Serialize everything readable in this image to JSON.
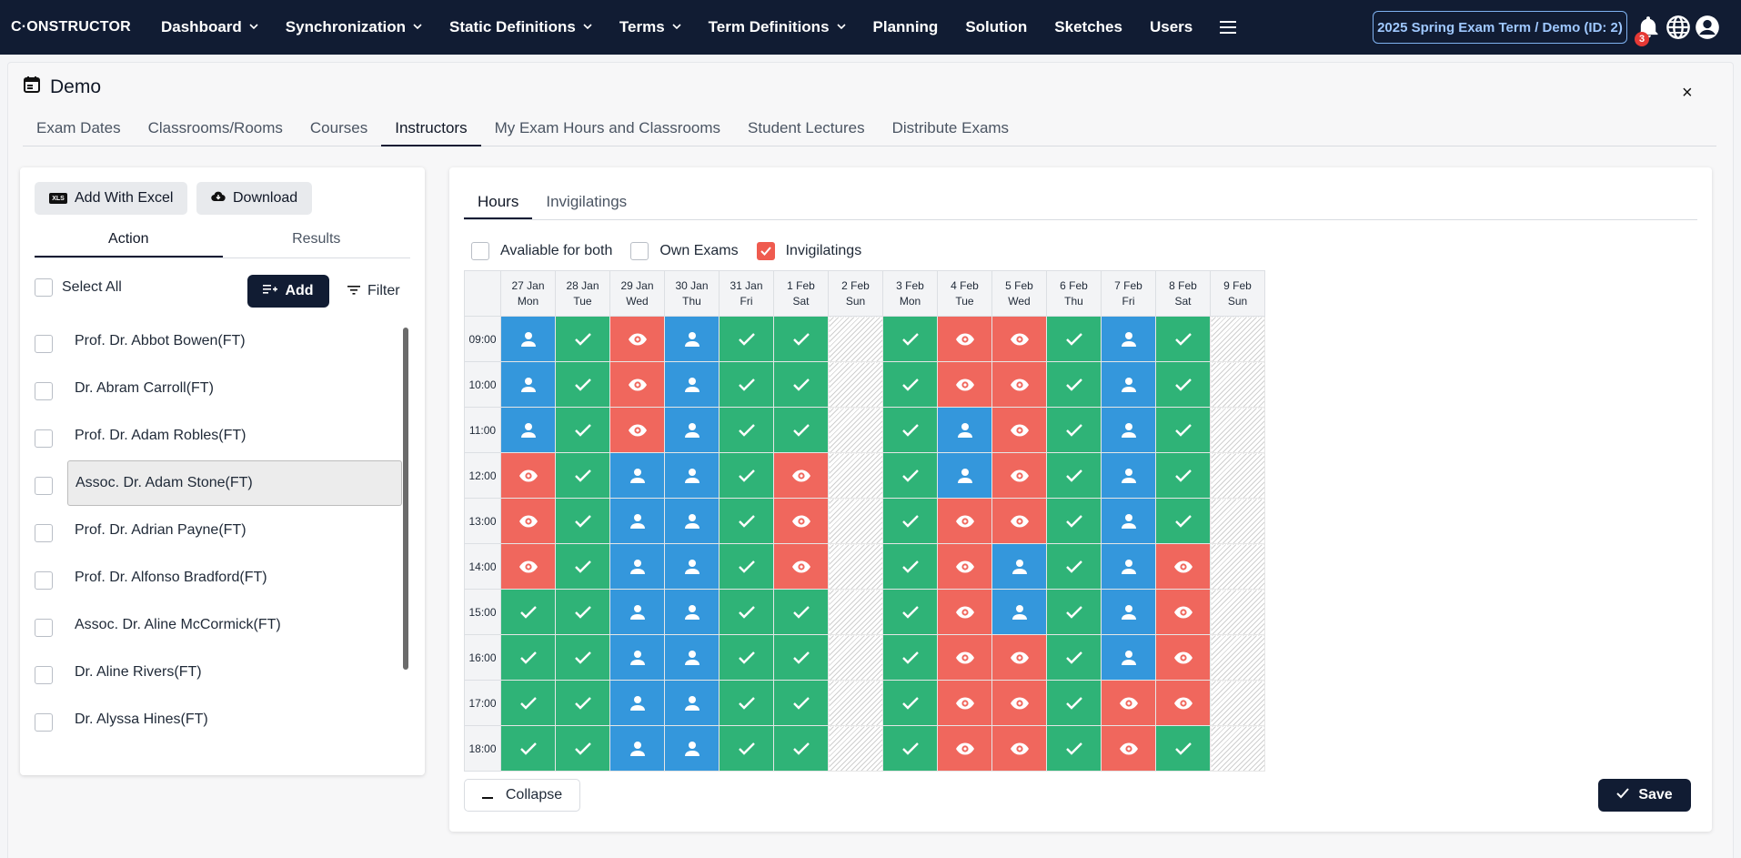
{
  "nav": {
    "logo": "C·ONSTRUCTOR",
    "items": [
      {
        "label": "Dashboard",
        "dropdown": true
      },
      {
        "label": "Synchronization",
        "dropdown": true
      },
      {
        "label": "Static Definitions",
        "dropdown": true
      },
      {
        "label": "Terms",
        "dropdown": true
      },
      {
        "label": "Term Definitions",
        "dropdown": true
      },
      {
        "label": "Planning",
        "dropdown": false
      },
      {
        "label": "Solution",
        "dropdown": false
      },
      {
        "label": "Sketches",
        "dropdown": false
      },
      {
        "label": "Users",
        "dropdown": false
      }
    ],
    "term_label": "2025 Spring Exam Term / Demo (ID: 2)",
    "notification_count": "3"
  },
  "page": {
    "title": "Demo",
    "close": "×",
    "tabs": [
      {
        "label": "Exam Dates",
        "active": false
      },
      {
        "label": "Classrooms/Rooms",
        "active": false
      },
      {
        "label": "Courses",
        "active": false
      },
      {
        "label": "Instructors",
        "active": true
      },
      {
        "label": "My Exam Hours and Classrooms",
        "active": false
      },
      {
        "label": "Student Lectures",
        "active": false
      },
      {
        "label": "Distribute Exams",
        "active": false
      }
    ]
  },
  "left": {
    "add_excel_label": "Add With Excel",
    "excel_badge": "XLS",
    "download_label": "Download",
    "subtabs": [
      {
        "label": "Action",
        "active": true
      },
      {
        "label": "Results",
        "active": false
      }
    ],
    "select_all_label": "Select All",
    "add_label": "Add",
    "filter_label": "Filter",
    "instructors": [
      {
        "name": "Prof. Dr. Abbot Bowen",
        "tag": "(FT)",
        "selected": false
      },
      {
        "name": "Dr. Abram Carroll",
        "tag": "(FT)",
        "selected": false
      },
      {
        "name": "Prof. Dr. Adam Robles",
        "tag": "(FT)",
        "selected": false
      },
      {
        "name": "Assoc. Dr. Adam Stone",
        "tag": "(FT)",
        "selected": true
      },
      {
        "name": "Prof. Dr. Adrian Payne",
        "tag": "(FT)",
        "selected": false
      },
      {
        "name": "Prof. Dr. Alfonso Bradford",
        "tag": "(FT)",
        "selected": false
      },
      {
        "name": "Assoc. Dr. Aline McCormick",
        "tag": "(FT)",
        "selected": false
      },
      {
        "name": "Dr. Aline Rivers",
        "tag": "(FT)",
        "selected": false
      },
      {
        "name": "Dr. Alyssa Hines",
        "tag": "(FT)",
        "selected": false
      }
    ]
  },
  "right": {
    "tabs": [
      {
        "label": "Hours",
        "active": true
      },
      {
        "label": "Invigilatings",
        "active": false
      }
    ],
    "legend": [
      {
        "label": "Avaliable for both",
        "checked": false
      },
      {
        "label": "Own Exams",
        "checked": false
      },
      {
        "label": "Invigilatings",
        "checked": true
      }
    ],
    "days": [
      {
        "date": "27 Jan",
        "dow": "Mon"
      },
      {
        "date": "28 Jan",
        "dow": "Tue"
      },
      {
        "date": "29 Jan",
        "dow": "Wed"
      },
      {
        "date": "30 Jan",
        "dow": "Thu"
      },
      {
        "date": "31 Jan",
        "dow": "Fri"
      },
      {
        "date": "1 Feb",
        "dow": "Sat"
      },
      {
        "date": "2 Feb",
        "dow": "Sun"
      },
      {
        "date": "3 Feb",
        "dow": "Mon"
      },
      {
        "date": "4 Feb",
        "dow": "Tue"
      },
      {
        "date": "5 Feb",
        "dow": "Wed"
      },
      {
        "date": "6 Feb",
        "dow": "Thu"
      },
      {
        "date": "7 Feb",
        "dow": "Fri"
      },
      {
        "date": "8 Feb",
        "dow": "Sat"
      },
      {
        "date": "9 Feb",
        "dow": "Sun"
      }
    ],
    "hours": [
      "09:00",
      "10:00",
      "11:00",
      "12:00",
      "13:00",
      "14:00",
      "15:00",
      "16:00",
      "17:00",
      "18:00"
    ],
    "grid": [
      "BGRBGGXGRRGBGX",
      "BGRBGGXGRRGBGX",
      "BGRBGGXGBRGBGX",
      "RGBBGRXGBRGBGX",
      "RGBBGRXGRRGBGX",
      "RGBBGRXGRBGBRX",
      "GGBBGGXGRBGBRX",
      "GGBBGGXGRRGBRX",
      "GGBBGGXGRRGRRX",
      "GGBBGGXGRRGRGX"
    ],
    "legend_codes": {
      "G": "available",
      "B": "own-exam",
      "R": "invigilating",
      "X": "unavailable"
    },
    "colors": {
      "G": "#2fb377",
      "B": "#3497dc",
      "R": "#f0675d",
      "accent": "#111c33"
    },
    "collapse_label": "Collapse",
    "save_label": "Save"
  }
}
